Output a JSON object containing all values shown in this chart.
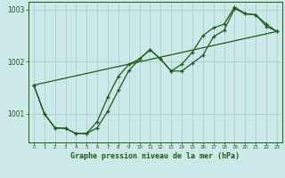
{
  "title": "Graphe pression niveau de la mer (hPa)",
  "bg_color": "#cce8e8",
  "grid_color": "#aad4d4",
  "line_color": "#1a5c1a",
  "xlim": [
    -0.5,
    23.5
  ],
  "ylim": [
    1000.45,
    1003.15
  ],
  "yticks": [
    1001,
    1002,
    1003
  ],
  "xticks": [
    0,
    1,
    2,
    3,
    4,
    5,
    6,
    7,
    8,
    9,
    10,
    11,
    12,
    13,
    14,
    15,
    16,
    17,
    18,
    19,
    20,
    21,
    22,
    23
  ],
  "series1_x": [
    0,
    1,
    2,
    3,
    4,
    5,
    6,
    7,
    8,
    9,
    10,
    11,
    12,
    13,
    14,
    15,
    16,
    17,
    18,
    19,
    20,
    21,
    22,
    23
  ],
  "series1_y": [
    1001.55,
    1001.0,
    1000.73,
    1000.72,
    1000.62,
    1000.62,
    1000.73,
    1001.05,
    1001.45,
    1001.83,
    1002.05,
    1002.23,
    1002.05,
    1001.82,
    1001.82,
    1001.97,
    1002.12,
    1002.48,
    1002.6,
    1003.02,
    1002.92,
    1002.9,
    1002.68,
    1002.58
  ],
  "series2_x": [
    0,
    1,
    2,
    3,
    4,
    5,
    6,
    7,
    8,
    9,
    10,
    11,
    12,
    13,
    14,
    15,
    16,
    17,
    18,
    19,
    20,
    21,
    22,
    23
  ],
  "series2_y": [
    1001.55,
    1001.0,
    1000.73,
    1000.72,
    1000.62,
    1000.62,
    1000.85,
    1001.32,
    1001.72,
    1001.95,
    1002.05,
    1002.23,
    1002.05,
    1001.82,
    1001.95,
    1002.18,
    1002.5,
    1002.65,
    1002.72,
    1003.05,
    1002.92,
    1002.9,
    1002.72,
    1002.58
  ],
  "series3_x": [
    0,
    23
  ],
  "series3_y": [
    1001.55,
    1002.58
  ]
}
